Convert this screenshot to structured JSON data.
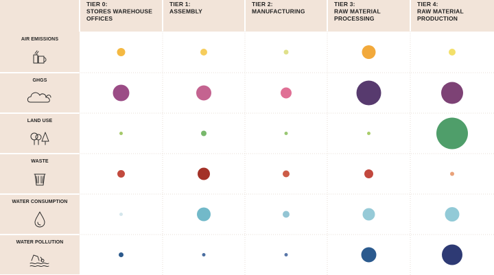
{
  "chart_data": {
    "type": "bubble-matrix",
    "columns": [
      {
        "key": "t0",
        "lines": [
          "TIER 0:",
          "STORES WAREHOUSE",
          "OFFICES"
        ]
      },
      {
        "key": "t1",
        "lines": [
          "TIER 1:",
          "ASSEMBLY"
        ]
      },
      {
        "key": "t2",
        "lines": [
          "TIER 2:",
          "MANUFACTURING"
        ]
      },
      {
        "key": "t3",
        "lines": [
          "TIER 3:",
          "RAW MATERIAL",
          "PROCESSING"
        ]
      },
      {
        "key": "t4",
        "lines": [
          "TIER 4:",
          "RAW MATERIAL",
          "PRODUCTION"
        ]
      }
    ],
    "rows": [
      {
        "label": "AIR EMISSIONS",
        "icon": "factory-icon",
        "values": [
          12,
          10,
          7,
          20,
          10
        ],
        "colors": [
          "#f4b942",
          "#f6cd5c",
          "#dfe08a",
          "#f2a93b",
          "#f3e06a"
        ]
      },
      {
        "label": "GHGS",
        "icon": "cloud-icon",
        "values": [
          24,
          22,
          16,
          36,
          32
        ],
        "colors": [
          "#9b4c86",
          "#c46390",
          "#e07095",
          "#573a6e",
          "#7d4275"
        ]
      },
      {
        "label": "LAND USE",
        "icon": "trees-icon",
        "values": [
          5,
          8,
          5,
          5,
          46
        ],
        "colors": [
          "#a5c96a",
          "#78b86c",
          "#99c773",
          "#a8cc6a",
          "#4f9e6a"
        ]
      },
      {
        "label": "WASTE",
        "icon": "trash-icon",
        "values": [
          11,
          18,
          10,
          13,
          6
        ],
        "colors": [
          "#c24a3e",
          "#a33127",
          "#cc5c47",
          "#c2483e",
          "#e9a27a"
        ]
      },
      {
        "label": "WATER CONSUMPTION",
        "icon": "water-drop-icon",
        "values": [
          5,
          20,
          10,
          18,
          21
        ],
        "colors": [
          "#d4e6ec",
          "#72b9c9",
          "#93c5d4",
          "#96cad7",
          "#92cad7"
        ]
      },
      {
        "label": "WATER POLLUTION",
        "icon": "water-pollution-icon",
        "values": [
          7,
          5,
          5,
          22,
          30
        ],
        "colors": [
          "#2c5a8c",
          "#4a6ea0",
          "#5876a8",
          "#2b5a8e",
          "#2e3a74"
        ]
      }
    ],
    "value_meaning": "relative bubble diameter"
  }
}
